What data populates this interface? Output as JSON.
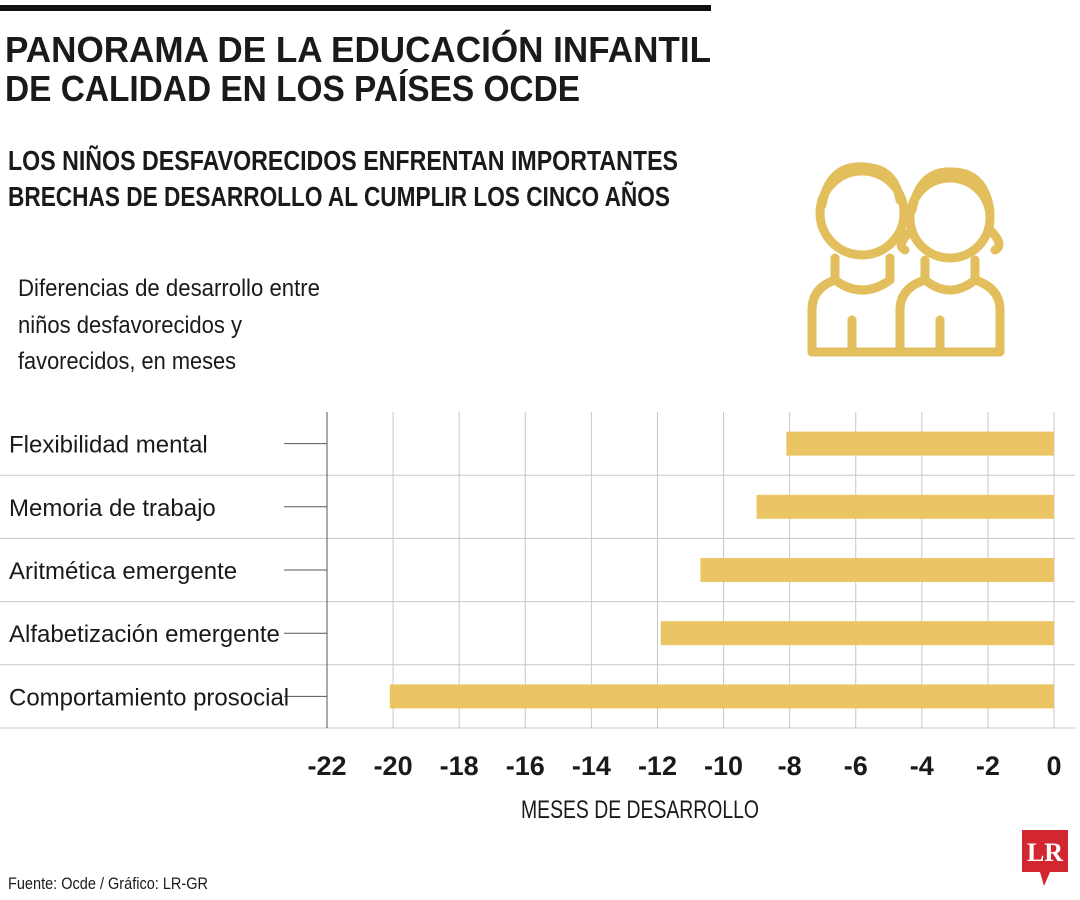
{
  "chart_data": {
    "type": "barh",
    "title": [
      "PANORAMA  DE LA EDUCACIÓN INFANTIL",
      "DE CALIDAD EN LOS PAÍSES OCDE"
    ],
    "subtitle": [
      "LOS NIÑOS DESFAVORECIDOS ENFRENTAN IMPORTANTES",
      "BRECHAS DE DESARROLLO AL CUMPLIR LOS CINCO AÑOS"
    ],
    "description": [
      "Diferencias de desarrollo entre",
      "niños desfavorecidos y",
      "favorecidos, en meses"
    ],
    "categories": [
      "Flexibilidad mental",
      "Memoria de trabajo",
      "Aritmética emergente",
      "Alfabetización emergente",
      "Comportamiento prosocial"
    ],
    "values": [
      -8.1,
      -9.0,
      -10.7,
      -11.9,
      -20.1
    ],
    "color": "#ebc563",
    "xlim": [
      -22,
      0
    ],
    "xticks": [
      -22,
      -20,
      -18,
      -16,
      -14,
      -12,
      -10,
      -8,
      -6,
      -4,
      -2,
      0
    ],
    "xlabel": "MESES DE DESARROLLO",
    "grid": true,
    "source": "Fuente: Ocde / Gráfico: LR-GR",
    "logo": "LR"
  }
}
